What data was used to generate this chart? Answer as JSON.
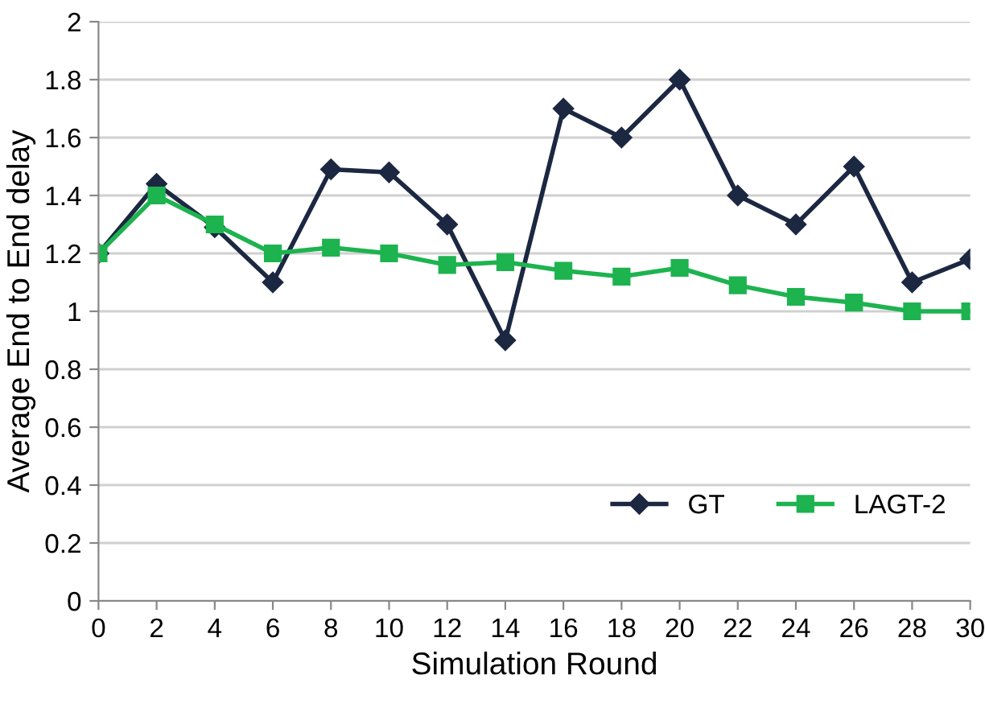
{
  "chart_data": {
    "type": "line",
    "xlabel": "Simulation Round",
    "ylabel": "Average End to End delay",
    "x": [
      0,
      2,
      4,
      6,
      8,
      10,
      12,
      14,
      16,
      18,
      20,
      22,
      24,
      26,
      28,
      30
    ],
    "series": [
      {
        "name": "GT",
        "color": "#1c2841",
        "marker": "diamond",
        "values": [
          1.2,
          1.44,
          1.29,
          1.1,
          1.49,
          1.48,
          1.3,
          0.9,
          1.7,
          1.6,
          1.8,
          1.4,
          1.3,
          1.5,
          1.1,
          1.18
        ]
      },
      {
        "name": "LAGT-2",
        "color": "#1db34f",
        "marker": "square",
        "values": [
          1.2,
          1.4,
          1.3,
          1.2,
          1.22,
          1.2,
          1.16,
          1.17,
          1.14,
          1.12,
          1.15,
          1.09,
          1.05,
          1.03,
          1.0,
          1.0
        ]
      }
    ],
    "xlim": [
      0,
      30
    ],
    "xticks": [
      0,
      2,
      4,
      6,
      8,
      10,
      12,
      14,
      16,
      18,
      20,
      22,
      24,
      26,
      28,
      30
    ],
    "ylim": [
      0,
      2
    ],
    "yticks": [
      0,
      0.2,
      0.4,
      0.6,
      0.8,
      1,
      1.2,
      1.4,
      1.6,
      1.8,
      2
    ],
    "grid": "y",
    "legend": "bottom right"
  }
}
